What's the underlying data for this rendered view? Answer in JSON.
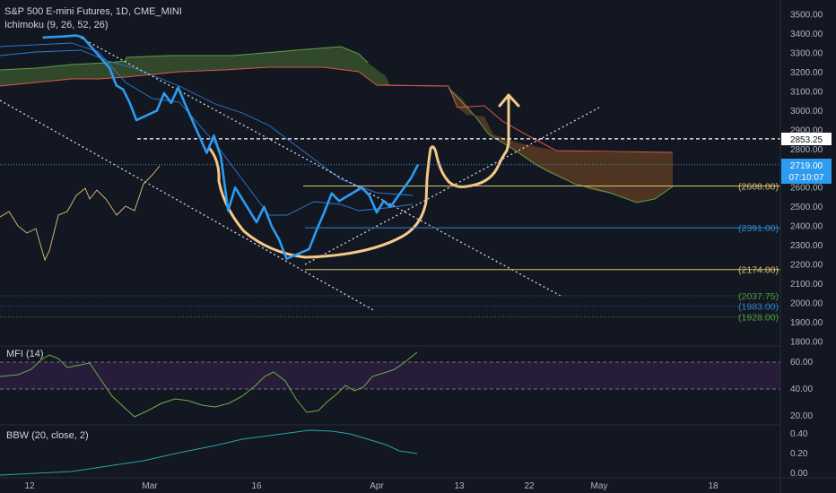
{
  "header": {
    "symbol_line": "S&P 500 E-mini Futures, 1D, CME_MINI",
    "indicator_line": "Ichimoku (9, 26, 52, 26)"
  },
  "mfi_pane": {
    "title": "MFI (14)",
    "ticks": [
      "60.00",
      "40.00",
      "20.00"
    ]
  },
  "bbw_pane": {
    "title": "BBW (20, close, 2)",
    "ticks": [
      "0.40",
      "0.20",
      "0.00"
    ]
  },
  "price_axis": {
    "ticks": [
      "3500.00",
      "3400.00",
      "3300.00",
      "3200.00",
      "3100.00",
      "3000.00",
      "2900.00",
      "2800.00",
      "2700.00",
      "2600.00",
      "2500.00",
      "2400.00",
      "2300.00",
      "2200.00",
      "2100.00",
      "2000.00",
      "1900.00",
      "1800.00"
    ]
  },
  "price_badges": {
    "horizontal_level": "2853.25",
    "last_price": "2719.00",
    "countdown": "07:10:07"
  },
  "levels": [
    {
      "label": "(2608.00)",
      "value": 2608,
      "color": "#d7c26b"
    },
    {
      "label": "(2391.00)",
      "value": 2391,
      "color": "#2f86c8"
    },
    {
      "label": "(2174.00)",
      "value": 2174,
      "color": "#d7c26b"
    },
    {
      "label": "(2037.75)",
      "value": 2037.75,
      "color": "#4e9a3c"
    },
    {
      "label": "(1983.00)",
      "value": 1983,
      "color": "#2f86c8"
    },
    {
      "label": "(1928.00)",
      "value": 1928,
      "color": "#4e9a3c"
    }
  ],
  "time_axis": {
    "labels": [
      "12",
      "Mar",
      "16",
      "Apr",
      "13",
      "22",
      "May",
      "18"
    ]
  },
  "colors": {
    "background": "#131722",
    "price_line": "#2d9bf0",
    "drawing": "#f5c98a",
    "cloud_bull": "#3d5a2f",
    "cloud_bear": "#5a3a22",
    "mfi_band": "#2a1e3d"
  },
  "chart_data": {
    "type": "line",
    "title": "S&P 500 E-mini Futures, 1D, CME_MINI",
    "xlabel": "",
    "ylabel": "",
    "x": [
      "Feb 12",
      "Mar 1",
      "Mar 16",
      "Apr 1",
      "Apr 13",
      "Apr 22",
      "May 1",
      "May 18"
    ],
    "ylim": [
      1800,
      3500
    ],
    "series": [
      {
        "name": "",
        "x": [
          "02-14",
          "02-17",
          "02-19",
          "02-20",
          "02-21",
          "02-24",
          "02-25",
          "02-26",
          "02-27",
          "02-28",
          "03-02",
          "03-03",
          "03-04",
          "03-05",
          "03-06",
          "03-09",
          "03-10",
          "03-11",
          "03-12",
          "03-13",
          "03-16",
          "03-17",
          "03-18",
          "03-19",
          "03-20",
          "03-23",
          "03-24",
          "03-25",
          "03-26",
          "03-27",
          "03-30",
          "03-31",
          "04-01",
          "04-02",
          "04-03",
          "04-06",
          "04-07"
        ],
        "values": [
          3380,
          3385,
          3390,
          3380,
          3340,
          3220,
          3130,
          3110,
          3040,
          2950,
          3000,
          3090,
          3040,
          3120,
          3030,
          2780,
          2870,
          2760,
          2480,
          2600,
          2420,
          2500,
          2400,
          2330,
          2230,
          2280,
          2380,
          2470,
          2570,
          2530,
          2600,
          2560,
          2470,
          2530,
          2500,
          2650,
          2719
        ]
      }
    ],
    "levels": [
      2853.25,
      2719,
      2608,
      2391,
      2174,
      2037.75,
      1983,
      1928
    ],
    "mfi": {
      "ylim": [
        15,
        70
      ],
      "bands": [
        40,
        60
      ]
    },
    "bbw": {
      "ylim": [
        0,
        0.45
      ]
    }
  }
}
